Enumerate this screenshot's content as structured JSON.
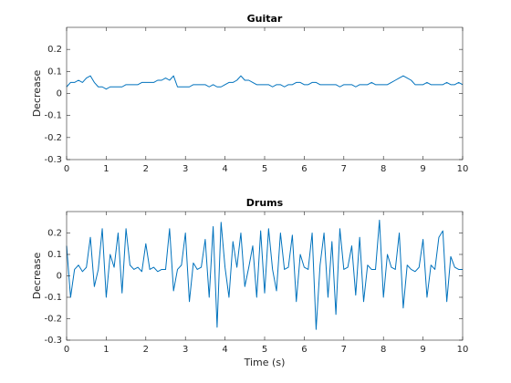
{
  "chart_data": [
    {
      "type": "line",
      "title": "Guitar",
      "ylabel": "Decrease",
      "color": "#0072bd",
      "x": [
        0,
        0.1,
        0.2,
        0.3,
        0.4,
        0.5,
        0.6,
        0.7,
        0.8,
        0.9,
        1,
        1.1,
        1.2,
        1.3,
        1.4,
        1.5,
        1.6,
        1.7,
        1.8,
        1.9,
        2,
        2.1,
        2.2,
        2.3,
        2.4,
        2.5,
        2.6,
        2.7,
        2.8,
        2.9,
        3,
        3.1,
        3.2,
        3.3,
        3.4,
        3.5,
        3.6,
        3.7,
        3.8,
        3.9,
        4,
        4.1,
        4.2,
        4.3,
        4.4,
        4.5,
        4.6,
        4.7,
        4.8,
        4.9,
        5,
        5.1,
        5.2,
        5.3,
        5.4,
        5.5,
        5.6,
        5.7,
        5.8,
        5.9,
        6,
        6.1,
        6.2,
        6.3,
        6.4,
        6.5,
        6.6,
        6.7,
        6.8,
        6.9,
        7,
        7.1,
        7.2,
        7.3,
        7.4,
        7.5,
        7.6,
        7.7,
        7.8,
        7.9,
        8,
        8.1,
        8.2,
        8.3,
        8.4,
        8.5,
        8.6,
        8.7,
        8.8,
        8.9,
        9,
        9.1,
        9.2,
        9.3,
        9.4,
        9.5,
        9.6,
        9.7,
        9.8,
        9.9,
        10
      ],
      "values": [
        0.03,
        0.05,
        0.05,
        0.06,
        0.05,
        0.07,
        0.08,
        0.05,
        0.03,
        0.03,
        0.02,
        0.03,
        0.03,
        0.03,
        0.03,
        0.04,
        0.04,
        0.04,
        0.04,
        0.05,
        0.05,
        0.05,
        0.05,
        0.06,
        0.06,
        0.07,
        0.06,
        0.08,
        0.03,
        0.03,
        0.03,
        0.03,
        0.04,
        0.04,
        0.04,
        0.04,
        0.03,
        0.04,
        0.03,
        0.03,
        0.04,
        0.05,
        0.05,
        0.06,
        0.08,
        0.06,
        0.06,
        0.05,
        0.04,
        0.04,
        0.04,
        0.04,
        0.03,
        0.04,
        0.04,
        0.03,
        0.04,
        0.04,
        0.05,
        0.05,
        0.04,
        0.04,
        0.05,
        0.05,
        0.04,
        0.04,
        0.04,
        0.04,
        0.04,
        0.03,
        0.04,
        0.04,
        0.04,
        0.03,
        0.04,
        0.04,
        0.04,
        0.05,
        0.04,
        0.04,
        0.04,
        0.04,
        0.05,
        0.06,
        0.07,
        0.08,
        0.07,
        0.06,
        0.04,
        0.04,
        0.04,
        0.05,
        0.04,
        0.04,
        0.04,
        0.04,
        0.05,
        0.04,
        0.04,
        0.05,
        0.04
      ],
      "xlim": [
        0,
        10
      ],
      "xticks": [
        0,
        1,
        2,
        3,
        4,
        5,
        6,
        7,
        8,
        9,
        10
      ],
      "ylim": [
        -0.3,
        0.3
      ],
      "yticks": [
        -0.3,
        -0.2,
        -0.1,
        0,
        0.1,
        0.2
      ]
    },
    {
      "type": "line",
      "title": "Drums",
      "ylabel": "Decrease",
      "xlabel": "Time (s)",
      "color": "#0072bd",
      "x": [
        0,
        0.1,
        0.2,
        0.3,
        0.4,
        0.5,
        0.6,
        0.7,
        0.8,
        0.9,
        1,
        1.1,
        1.2,
        1.3,
        1.4,
        1.5,
        1.6,
        1.7,
        1.8,
        1.9,
        2,
        2.1,
        2.2,
        2.3,
        2.4,
        2.5,
        2.6,
        2.7,
        2.8,
        2.9,
        3,
        3.1,
        3.2,
        3.3,
        3.4,
        3.5,
        3.6,
        3.7,
        3.8,
        3.9,
        4,
        4.1,
        4.2,
        4.3,
        4.4,
        4.5,
        4.6,
        4.7,
        4.8,
        4.9,
        5,
        5.1,
        5.2,
        5.3,
        5.4,
        5.5,
        5.6,
        5.7,
        5.8,
        5.9,
        6,
        6.1,
        6.2,
        6.3,
        6.4,
        6.5,
        6.6,
        6.7,
        6.8,
        6.9,
        7,
        7.1,
        7.2,
        7.3,
        7.4,
        7.5,
        7.6,
        7.7,
        7.8,
        7.9,
        8,
        8.1,
        8.2,
        8.3,
        8.4,
        8.5,
        8.6,
        8.7,
        8.8,
        8.9,
        9,
        9.1,
        9.2,
        9.3,
        9.4,
        9.5,
        9.6,
        9.7,
        9.8,
        9.9,
        10
      ],
      "values": [
        0.14,
        -0.1,
        0.03,
        0.05,
        0.02,
        0.04,
        0.18,
        -0.05,
        0.03,
        0.22,
        -0.1,
        0.1,
        0.04,
        0.2,
        -0.08,
        0.22,
        0.05,
        0.03,
        0.04,
        0.02,
        0.15,
        0.03,
        0.04,
        0.02,
        0.03,
        0.03,
        0.22,
        -0.07,
        0.03,
        0.05,
        0.2,
        -0.12,
        0.06,
        0.03,
        0.04,
        0.17,
        -0.1,
        0.23,
        -0.24,
        0.25,
        0.04,
        -0.1,
        0.16,
        0.04,
        0.2,
        -0.05,
        0.04,
        0.14,
        -0.1,
        0.21,
        -0.08,
        0.22,
        0.03,
        -0.07,
        0.2,
        0.03,
        0.04,
        0.19,
        -0.12,
        0.1,
        0.04,
        0.03,
        0.2,
        -0.25,
        0.05,
        0.2,
        -0.1,
        0.16,
        -0.18,
        0.22,
        0.03,
        0.04,
        0.14,
        -0.09,
        0.18,
        -0.12,
        0.05,
        0.03,
        0.03,
        0.26,
        -0.1,
        0.1,
        0.04,
        0.03,
        0.2,
        -0.15,
        0.05,
        0.03,
        0.02,
        0.04,
        0.17,
        -0.1,
        0.05,
        0.03,
        0.18,
        0.21,
        -0.12,
        0.09,
        0.04,
        0.03,
        0.03
      ],
      "xlim": [
        0,
        10
      ],
      "xticks": [
        0,
        1,
        2,
        3,
        4,
        5,
        6,
        7,
        8,
        9,
        10
      ],
      "ylim": [
        -0.3,
        0.3
      ],
      "yticks": [
        -0.3,
        -0.2,
        -0.1,
        0,
        0.1,
        0.2
      ]
    }
  ]
}
